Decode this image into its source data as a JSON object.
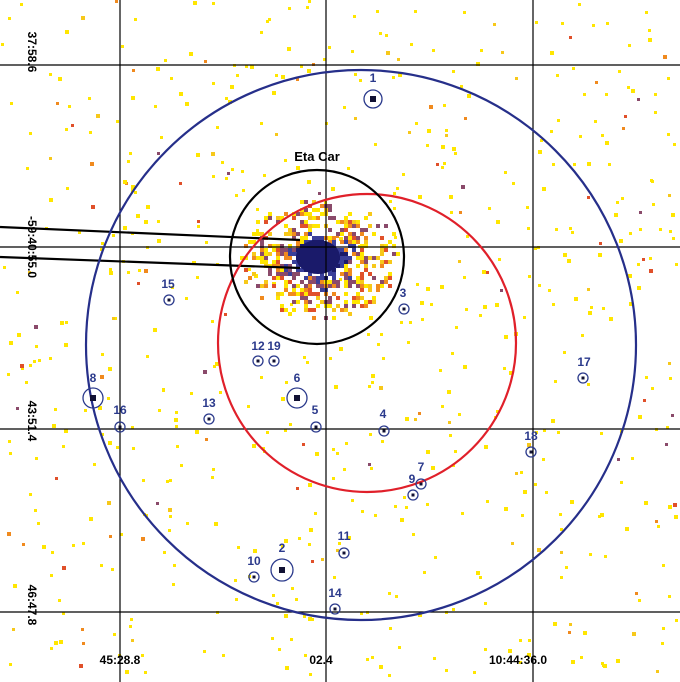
{
  "chart_data": {
    "type": "scatter",
    "target": {
      "name": "Eta Car"
    },
    "x_ticks": [
      "45:28.8",
      "02.4",
      "10:44:36.0"
    ],
    "y_ticks": [
      "37:58.6",
      "-59:40:55.0",
      "43:51.4",
      "46:47.8"
    ],
    "sources": [
      {
        "id": "1"
      },
      {
        "id": "2"
      },
      {
        "id": "3"
      },
      {
        "id": "4"
      },
      {
        "id": "5"
      },
      {
        "id": "6"
      },
      {
        "id": "7"
      },
      {
        "id": "8"
      },
      {
        "id": "9"
      },
      {
        "id": "10"
      },
      {
        "id": "11"
      },
      {
        "id": "12"
      },
      {
        "id": "13"
      },
      {
        "id": "14"
      },
      {
        "id": "15"
      },
      {
        "id": "16"
      },
      {
        "id": "17"
      },
      {
        "id": "18"
      },
      {
        "id": "19"
      }
    ],
    "colors": {
      "grid": "#000000",
      "outer_circle": "#262f8a",
      "middle_circle": "#e0202a",
      "inner_circle": "#000000",
      "source_marker": "#2b3a8c",
      "pixels": [
        "#ffe600",
        "#f7c81a",
        "#f08a1e",
        "#e0502a",
        "#8a4a6a",
        "#3a3f9a",
        "#1a1a6a"
      ]
    }
  }
}
